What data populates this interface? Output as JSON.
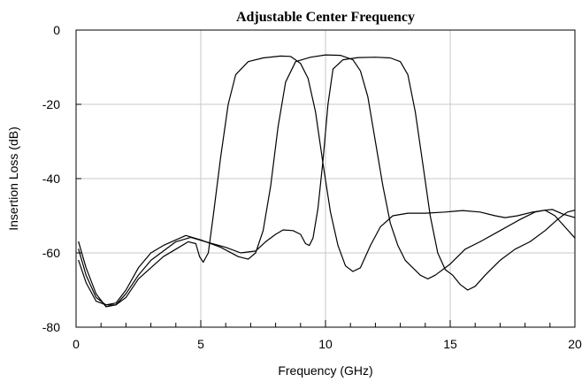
{
  "chart_data": {
    "type": "line",
    "title": "Adjustable Center Frequency",
    "xlabel": "Frequency (GHz)",
    "ylabel": "Insertion Loss (dB)",
    "xlim": [
      0,
      20
    ],
    "ylim": [
      -80,
      0
    ],
    "xticks": [
      0,
      5,
      10,
      15,
      20
    ],
    "yticks": [
      0,
      -20,
      -40,
      -60,
      -80
    ],
    "x_minor_step": 1,
    "vertical_grid": [
      5,
      10,
      15
    ],
    "horizontal_grid": [
      -20,
      -40,
      -60
    ],
    "line_color": "#000000",
    "series": [
      {
        "points": [
          [
            0.1,
            -57
          ],
          [
            0.4,
            -64
          ],
          [
            0.8,
            -71
          ],
          [
            1.2,
            -74.5
          ],
          [
            1.6,
            -74
          ],
          [
            2.0,
            -71
          ],
          [
            2.5,
            -66
          ],
          [
            3.0,
            -62
          ],
          [
            3.5,
            -59.5
          ],
          [
            4.0,
            -57
          ],
          [
            4.6,
            -55.8
          ],
          [
            5.2,
            -57
          ],
          [
            6.0,
            -58.5
          ],
          [
            6.6,
            -60
          ],
          [
            7.2,
            -59.5
          ],
          [
            7.6,
            -57
          ],
          [
            8.0,
            -55
          ],
          [
            8.3,
            -53.8
          ],
          [
            8.7,
            -54
          ],
          [
            9.0,
            -55
          ],
          [
            9.2,
            -57.5
          ],
          [
            9.35,
            -58
          ],
          [
            9.5,
            -56
          ],
          [
            9.7,
            -48
          ],
          [
            9.9,
            -35
          ],
          [
            10.1,
            -20
          ],
          [
            10.3,
            -10.5
          ],
          [
            10.7,
            -8
          ],
          [
            11.3,
            -7.4
          ],
          [
            12.0,
            -7.3
          ],
          [
            12.6,
            -7.5
          ],
          [
            13.0,
            -8.5
          ],
          [
            13.3,
            -12
          ],
          [
            13.6,
            -22
          ],
          [
            13.9,
            -36
          ],
          [
            14.2,
            -50
          ],
          [
            14.5,
            -60
          ],
          [
            14.8,
            -64.5
          ],
          [
            15.1,
            -66
          ],
          [
            15.4,
            -68.5
          ],
          [
            15.7,
            -70
          ],
          [
            16.0,
            -69
          ],
          [
            16.4,
            -66
          ],
          [
            17.0,
            -62
          ],
          [
            17.6,
            -59
          ],
          [
            18.2,
            -57
          ],
          [
            18.8,
            -54
          ],
          [
            19.3,
            -51
          ],
          [
            19.7,
            -49
          ],
          [
            20.0,
            -48.5
          ]
        ]
      },
      {
        "points": [
          [
            0.1,
            -59
          ],
          [
            0.4,
            -66
          ],
          [
            0.8,
            -72
          ],
          [
            1.2,
            -74
          ],
          [
            1.6,
            -73.5
          ],
          [
            2.0,
            -70
          ],
          [
            2.5,
            -64
          ],
          [
            3.0,
            -60
          ],
          [
            3.5,
            -58
          ],
          [
            4.0,
            -56.5
          ],
          [
            4.4,
            -55.3
          ],
          [
            5.0,
            -56.5
          ],
          [
            5.8,
            -58.5
          ],
          [
            6.5,
            -61
          ],
          [
            6.9,
            -61.7
          ],
          [
            7.2,
            -60
          ],
          [
            7.5,
            -54
          ],
          [
            7.8,
            -42
          ],
          [
            8.1,
            -26
          ],
          [
            8.4,
            -14
          ],
          [
            8.8,
            -8.5
          ],
          [
            9.4,
            -7.3
          ],
          [
            10.0,
            -6.7
          ],
          [
            10.6,
            -6.8
          ],
          [
            11.1,
            -8
          ],
          [
            11.4,
            -11
          ],
          [
            11.7,
            -18
          ],
          [
            12.0,
            -30
          ],
          [
            12.3,
            -42
          ],
          [
            12.6,
            -52
          ],
          [
            12.9,
            -58
          ],
          [
            13.2,
            -62
          ],
          [
            13.5,
            -64
          ],
          [
            13.8,
            -66
          ],
          [
            14.1,
            -67
          ],
          [
            14.4,
            -66
          ],
          [
            15.0,
            -63
          ],
          [
            15.6,
            -59
          ],
          [
            16.2,
            -57
          ],
          [
            17.0,
            -54
          ],
          [
            17.8,
            -51
          ],
          [
            18.4,
            -49
          ],
          [
            18.8,
            -48.5
          ],
          [
            19.2,
            -50
          ],
          [
            19.6,
            -53
          ],
          [
            20.0,
            -56
          ]
        ]
      },
      {
        "points": [
          [
            0.1,
            -62
          ],
          [
            0.4,
            -68
          ],
          [
            0.8,
            -73
          ],
          [
            1.2,
            -74
          ],
          [
            1.6,
            -74
          ],
          [
            2.0,
            -72
          ],
          [
            2.5,
            -67
          ],
          [
            3.0,
            -64
          ],
          [
            3.5,
            -61
          ],
          [
            4.0,
            -59
          ],
          [
            4.5,
            -57
          ],
          [
            4.8,
            -57.5
          ],
          [
            4.95,
            -61
          ],
          [
            5.1,
            -62.5
          ],
          [
            5.3,
            -60
          ],
          [
            5.5,
            -50
          ],
          [
            5.8,
            -34
          ],
          [
            6.1,
            -20
          ],
          [
            6.4,
            -12
          ],
          [
            6.9,
            -8.5
          ],
          [
            7.5,
            -7.5
          ],
          [
            8.2,
            -7.0
          ],
          [
            8.6,
            -7.1
          ],
          [
            9.0,
            -9
          ],
          [
            9.3,
            -13
          ],
          [
            9.6,
            -22
          ],
          [
            9.9,
            -36
          ],
          [
            10.2,
            -49
          ],
          [
            10.5,
            -58
          ],
          [
            10.8,
            -63.5
          ],
          [
            11.1,
            -65
          ],
          [
            11.4,
            -64
          ],
          [
            11.8,
            -58
          ],
          [
            12.2,
            -53
          ],
          [
            12.7,
            -50
          ],
          [
            13.3,
            -49.3
          ],
          [
            14.0,
            -49.3
          ],
          [
            14.8,
            -49
          ],
          [
            15.5,
            -48.6
          ],
          [
            16.2,
            -49
          ],
          [
            16.8,
            -50
          ],
          [
            17.2,
            -50.5
          ],
          [
            17.7,
            -50
          ],
          [
            18.3,
            -49
          ],
          [
            18.8,
            -48.5
          ],
          [
            19.1,
            -48.3
          ],
          [
            19.5,
            -49.5
          ],
          [
            20.0,
            -50.5
          ]
        ]
      }
    ]
  }
}
